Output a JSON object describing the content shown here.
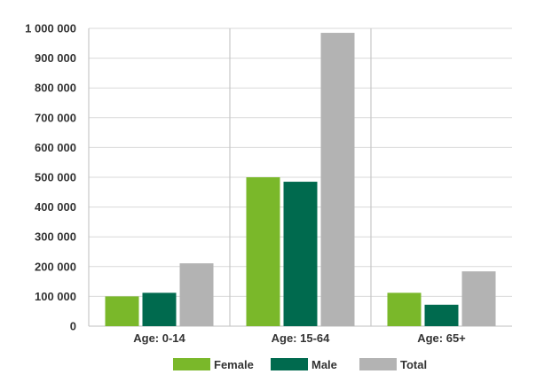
{
  "chart_data": {
    "type": "bar",
    "title": "",
    "xlabel": "",
    "ylabel": "",
    "categories": [
      "Age: 0-14",
      "Age: 15-64",
      "Age: 65+"
    ],
    "series": [
      {
        "name": "Female",
        "values": [
          100000,
          500000,
          112000
        ],
        "color": "#7ab82a"
      },
      {
        "name": "Male",
        "values": [
          112000,
          485000,
          72000
        ],
        "color": "#006a4e"
      },
      {
        "name": "Total",
        "values": [
          211000,
          985000,
          184000
        ],
        "color": "#b3b3b3"
      }
    ],
    "ylim": [
      0,
      1000000
    ],
    "yticks": [
      0,
      100000,
      200000,
      300000,
      400000,
      500000,
      600000,
      700000,
      800000,
      900000,
      1000000
    ],
    "ytick_labels": [
      "0",
      "100 000",
      "200 000",
      "300 000",
      "400 000",
      "500 000",
      "600 000",
      "700 000",
      "800 000",
      "900 000",
      "1 000 000"
    ],
    "grid": true,
    "legend_position": "bottom"
  }
}
